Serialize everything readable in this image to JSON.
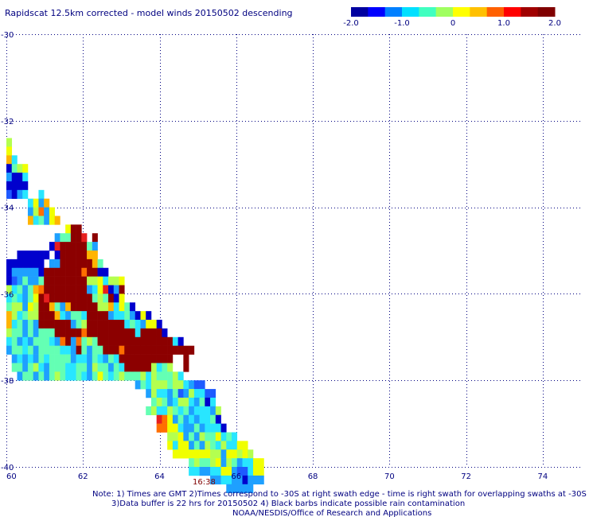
{
  "chart_data": {
    "type": "heatmap",
    "title": "Rapidscat 12.5km corrected - model winds 20150502 descending",
    "xlim": [
      60,
      75
    ],
    "ylim": [
      -40,
      -30
    ],
    "x_ticks": [
      "60",
      "62",
      "64",
      "66",
      "68",
      "70",
      "72",
      "74"
    ],
    "y_ticks": [
      "-30",
      "-32",
      "-34",
      "-36",
      "-38",
      "-40"
    ],
    "grid": true,
    "colorbar": {
      "range": [
        -2.0,
        2.0
      ],
      "tick_labels": [
        "-2.0",
        "-1.0",
        "0",
        "1.0",
        "2.0"
      ],
      "colors": [
        "#0000a0",
        "#0000ff",
        "#0080ff",
        "#00e0ff",
        "#40ffc0",
        "#a0ff60",
        "#ffff00",
        "#ffc000",
        "#ff6000",
        "#ff0000",
        "#a00000",
        "#800000"
      ]
    },
    "palette": {
      "B": "#0000cd",
      "b": "#1e5aff",
      "c": "#1ea0ff",
      "n": "#28e6ff",
      "m": "#64ffb4",
      "g": "#b4ff50",
      "y": "#f0ff00",
      "o": "#ffb400",
      "O": "#ff6e00",
      "r": "#e61e1e",
      "R": "#8c0000"
    },
    "grid_origin": {
      "lon": 60.0,
      "lat": -32.4
    },
    "cell_size_deg": {
      "lon": 0.14,
      "lat": 0.2
    },
    "cells": [
      "g",
      "y",
      "on",
      "Bmgy",
      "cBBn",
      "BBBB",
      "bBcn..n",
      "....nyco",
      "....cgOcy",
      "....onmcyo",
      "...........yRR",
      ".........cmmRRr.R",
      "........BrRRRRRmc",
      "..BBBBBB.BRRRRRoo",
      "BBBBBBB.ccRRRRRRom",
      "BcccccBRRRRRRRORRBB",
      "BbcmccmRRRRRRRRggynggy",
      "gnmcmoORRRRRRRRcnyrBcR",
      "nmncmyRrRRRRRRRRmgmRBy",
      "mggcygRRomcoRRRRRggonymB",
      "ognmggRRRoncmmnRRRRcnnmcByB",
      "onmcmcRRRRRRcmgRRRRRRRnmncyyB",
      "gmmcmcmmmRRRRRORRRRRRRRRnRRRRB",
      "nmcncmmmncORcOmgmRRRRRRRRRRRRRRnB",
      "cmmnmcmmmmnncRmcmmRRRORRRRRRRRRRRRR",
      ".cncncmnmmmmcnncmncmnRRRRRRRRRR..R",
      ".mmcmgncmmmnnmmcgmmcmnRRRRRgnmg..R",
      "..cmmcmcmgmnnmncmymnmgmmmgngmmmgn",
      "........................cmngggmggncbb",
      "..........................cgnncmbcgnnbb",
      "...........................mgmcnggncmBn",
      "..........................mgnngmnmcnnncg",
      "............................rOycmcncnnmB",
      "............................OOyynccmcnnnB",
      "..............................ggycmcgmmynmn",
      "..............................ynyycmcgmngnnyy",
      "...............................yyyyyyyggcyygyg",
      "..................................mgmmgycgmcnnyy",
      "..................................nnccnnyycbbnyy",
      "......................................ccnnccBccc",
      ".........................................ccccc"
    ],
    "annotations": [
      "16:38"
    ]
  },
  "footer": {
    "line1": "Note: 1) Times are GMT 2)Times correspond to -30S at right swath edge - time is right swath for overlapping swaths at -30S",
    "line2": "3)Data buffer is 22 hrs for 20150502 4) Black barbs indicate possible rain contamination",
    "line3": "NOAA/NESDIS/Office of Research and Applications"
  }
}
